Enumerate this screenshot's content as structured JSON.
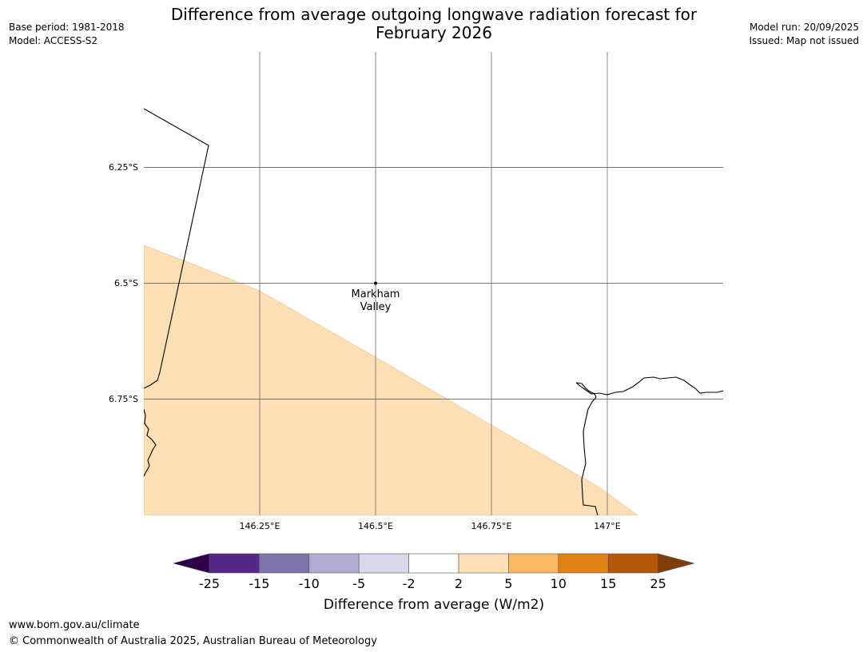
{
  "header": {
    "base_period": "Base period: 1981-2018",
    "model": "Model: ACCESS-S2",
    "model_run": "Model run: 20/09/2025",
    "issued": "Issued: Map not issued",
    "title_line1": "Difference from average outgoing longwave radiation forecast for",
    "title_line2": "February 2026"
  },
  "map": {
    "lat_ticks": [
      "6.25°S",
      "6.5°S",
      "6.75°S"
    ],
    "lon_ticks": [
      "146.25°E",
      "146.5°E",
      "146.75°E",
      "147°E"
    ],
    "place": {
      "name_line1": "Markham",
      "name_line2": "Valley"
    },
    "shaded_category": "2 to 5",
    "fill_color": "#fcdfb5"
  },
  "colorbar": {
    "label": "Difference from average (W/m2)",
    "ticks": [
      "-25",
      "-15",
      "-10",
      "-5",
      "-2",
      "2",
      "5",
      "10",
      "15",
      "25"
    ],
    "colors": [
      "#2d004b",
      "#542788",
      "#8073ac",
      "#b2abd2",
      "#d8daeb",
      "#ffffff",
      "#fee0b6",
      "#fdb863",
      "#e08214",
      "#b35806",
      "#7f3b08"
    ]
  },
  "footer": {
    "url": "www.bom.gov.au/climate",
    "copyright": "© Commonwealth of Australia 2025, Australian Bureau of Meteorology"
  }
}
